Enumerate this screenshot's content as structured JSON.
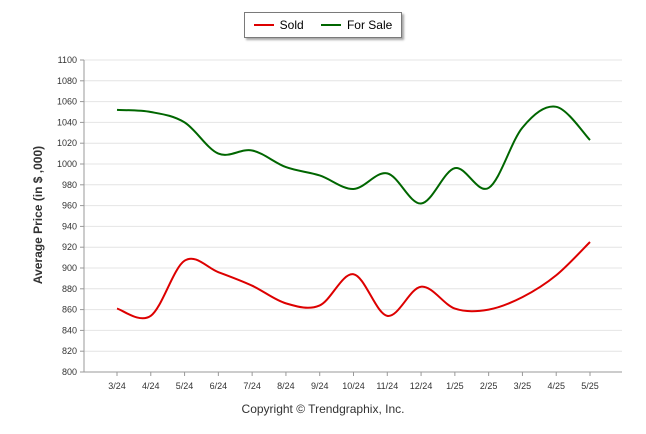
{
  "chart_data": {
    "type": "line",
    "x": [
      "3/24",
      "4/24",
      "5/24",
      "6/24",
      "7/24",
      "8/24",
      "9/24",
      "10/24",
      "11/24",
      "12/24",
      "1/25",
      "2/25",
      "3/25",
      "4/25",
      "5/25"
    ],
    "series": [
      {
        "name": "Sold",
        "color": "#dd0000",
        "values": [
          861,
          854,
          907,
          896,
          883,
          866,
          864,
          894,
          854,
          882,
          861,
          860,
          872,
          893,
          925
        ]
      },
      {
        "name": "For Sale",
        "color": "#006600",
        "values": [
          1052,
          1050,
          1040,
          1010,
          1013,
          997,
          989,
          976,
          991,
          962,
          996,
          977,
          1035,
          1055,
          1023
        ]
      }
    ],
    "ylabel": "Average Price (in $ ,000)",
    "xlabel": "",
    "ylim": [
      800,
      1100
    ],
    "yticks": [
      800,
      820,
      840,
      860,
      880,
      900,
      920,
      940,
      960,
      980,
      1000,
      1020,
      1040,
      1060,
      1080,
      1100
    ],
    "grid": true,
    "legend": "top-center"
  },
  "legend": {
    "sold_label": "Sold",
    "for_sale_label": "For Sale"
  },
  "footer": "Copyright © Trendgraphix, Inc."
}
